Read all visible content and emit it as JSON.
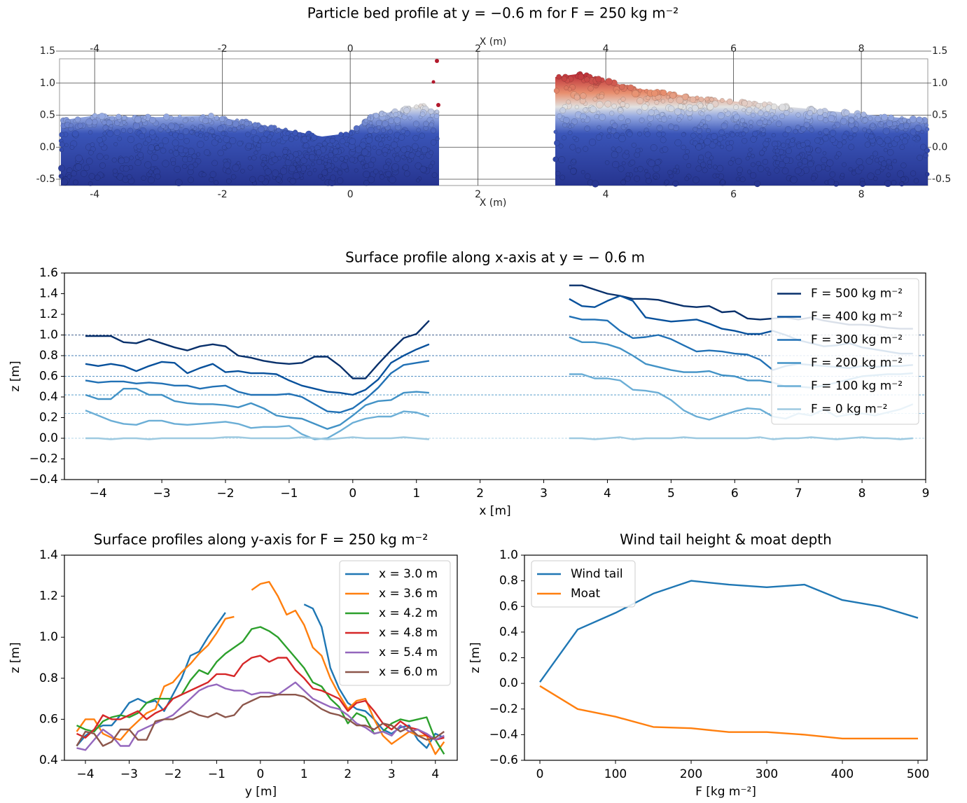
{
  "chart_data": [
    {
      "type": "render",
      "title": "Particle bed profile at y = −0.6 m for F = 250 kg m⁻²",
      "xlabel": "X (m)",
      "xlim": [
        -4.55,
        9.04
      ],
      "ylim": [
        -0.5,
        1.5
      ],
      "xticks": [
        -4,
        -2,
        0,
        2,
        4,
        6,
        8
      ],
      "yticks": [
        -0.5,
        {
          "value": 0,
          "label": "0.0"
        },
        0.5,
        {
          "value": 1,
          "label": "1.0"
        },
        1.5
      ]
    },
    {
      "type": "line",
      "title": "Surface profile along x-axis at y = − 0.6 m",
      "xlabel": "x [m]",
      "ylabel": "z [m]",
      "xlim": [
        -4.53,
        9
      ],
      "ylim": [
        -0.4,
        1.6
      ],
      "legend": "upper right",
      "xticks": [
        {
          "value": -4,
          "label": "−4"
        },
        {
          "value": -3,
          "label": "−3"
        },
        {
          "value": -2,
          "label": "−2"
        },
        {
          "value": -1,
          "label": "−1"
        },
        0,
        1,
        2,
        3,
        4,
        5,
        6,
        7,
        8,
        9
      ],
      "yticks": [
        {
          "value": -0.4,
          "label": "−0.4"
        },
        {
          "value": -0.2,
          "label": "−0.2"
        },
        {
          "value": 0,
          "label": "0.0"
        },
        0.2,
        0.4,
        0.6,
        0.8,
        {
          "value": 1,
          "label": "1.0"
        },
        1.2,
        1.4,
        1.6
      ],
      "x": [
        -4.2,
        -4,
        -3.8,
        -3.6,
        -3.4,
        -3.2,
        -3,
        -2.8,
        -2.6,
        -2.4,
        -2.2,
        -2,
        -1.8,
        -1.6,
        -1.4,
        -1.2,
        -1,
        -0.8,
        -0.6,
        -0.4,
        -0.2,
        0,
        0.2,
        0.4,
        0.6,
        0.8,
        1,
        1.2,
        1.4,
        1.6,
        1.8,
        2,
        2.2,
        2.4,
        2.6,
        2.8,
        3,
        3.2,
        3.4,
        3.6,
        3.8,
        4,
        4.2,
        4.4,
        4.6,
        4.8,
        5,
        5.2,
        5.4,
        5.6,
        5.8,
        6,
        6.2,
        6.4,
        6.6,
        6.8,
        7,
        7.2,
        7.4,
        7.6,
        7.8,
        8,
        8.2,
        8.4,
        8.6,
        8.8
      ],
      "dashed_levels": [
        1.0,
        0.8,
        0.6,
        0.42,
        0.24,
        0
      ],
      "series": [
        {
          "name": "F = 500 kg m⁻²",
          "color": "#08306b",
          "values": [
            0.99,
            0.99,
            0.99,
            0.93,
            0.92,
            0.96,
            0.92,
            0.88,
            0.85,
            0.89,
            0.91,
            0.89,
            0.8,
            0.78,
            0.75,
            0.73,
            0.72,
            0.73,
            0.79,
            0.79,
            0.7,
            0.58,
            0.58,
            0.72,
            0.85,
            0.97,
            1.01,
            1.14,
            null,
            null,
            null,
            null,
            null,
            null,
            null,
            null,
            null,
            null,
            1.48,
            1.48,
            1.44,
            1.4,
            1.38,
            1.35,
            1.35,
            1.34,
            1.31,
            1.28,
            1.27,
            1.28,
            1.22,
            1.23,
            1.16,
            1.15,
            1.16,
            1.17,
            1.15,
            1.17,
            1.14,
            1.12,
            1.1,
            1.1,
            1.09,
            1.07,
            1.06,
            1.06
          ]
        },
        {
          "name": "F = 400 kg m⁻²",
          "color": "#08519c",
          "values": [
            0.72,
            0.7,
            0.72,
            0.7,
            0.65,
            0.7,
            0.74,
            0.73,
            0.63,
            0.68,
            0.72,
            0.64,
            0.65,
            0.63,
            0.63,
            0.62,
            0.56,
            0.51,
            0.48,
            0.45,
            0.44,
            0.42,
            0.47,
            0.57,
            0.73,
            0.8,
            0.86,
            0.91,
            null,
            null,
            null,
            null,
            null,
            null,
            null,
            null,
            null,
            null,
            1.35,
            1.28,
            1.27,
            1.33,
            1.38,
            1.33,
            1.17,
            1.15,
            1.13,
            1.14,
            1.15,
            1.11,
            1.06,
            1.04,
            1.01,
            1.01,
            1.04,
            1.0,
            0.95,
            0.92,
            0.89,
            0.9,
            0.92,
            0.88,
            0.86,
            0.84,
            0.82,
            0.82
          ]
        },
        {
          "name": "F = 300 kg m⁻²",
          "color": "#2171b5",
          "values": [
            0.56,
            0.54,
            0.55,
            0.55,
            0.53,
            0.54,
            0.53,
            0.51,
            0.51,
            0.48,
            0.5,
            0.51,
            0.45,
            0.42,
            0.42,
            0.42,
            0.43,
            0.4,
            0.33,
            0.26,
            0.25,
            0.29,
            0.38,
            0.49,
            0.63,
            0.71,
            0.73,
            0.75,
            null,
            null,
            null,
            null,
            null,
            null,
            null,
            null,
            null,
            null,
            1.18,
            1.15,
            1.15,
            1.14,
            1.04,
            0.97,
            0.98,
            1.0,
            0.96,
            0.9,
            0.84,
            0.85,
            0.84,
            0.82,
            0.81,
            0.76,
            0.66,
            0.7,
            0.72,
            0.71,
            0.7,
            0.69,
            0.68,
            0.7,
            0.69,
            0.7,
            0.7,
            0.71
          ]
        },
        {
          "name": "F = 200 kg m⁻²",
          "color": "#4292c6",
          "values": [
            0.42,
            0.38,
            0.38,
            0.48,
            0.48,
            0.42,
            0.42,
            0.36,
            0.34,
            0.33,
            0.33,
            0.32,
            0.3,
            0.34,
            0.29,
            0.22,
            0.2,
            0.19,
            0.14,
            0.09,
            0.13,
            0.22,
            0.32,
            0.36,
            0.37,
            0.44,
            0.45,
            0.44,
            null,
            null,
            null,
            null,
            null,
            null,
            null,
            null,
            null,
            null,
            0.98,
            0.93,
            0.93,
            0.91,
            0.87,
            0.8,
            0.72,
            0.69,
            0.66,
            0.64,
            0.64,
            0.65,
            0.61,
            0.6,
            0.56,
            0.56,
            0.54,
            0.5,
            0.5,
            0.49,
            0.51,
            0.54,
            0.57,
            0.6,
            0.61,
            0.62,
            0.62,
            0.63
          ]
        },
        {
          "name": "F = 100 kg m⁻²",
          "color": "#6baed6",
          "values": [
            0.27,
            0.22,
            0.17,
            0.14,
            0.13,
            0.17,
            0.17,
            0.14,
            0.13,
            0.14,
            0.15,
            0.16,
            0.14,
            0.1,
            0.11,
            0.11,
            0.12,
            0.04,
            -0.01,
            0.0,
            0.07,
            0.15,
            0.19,
            0.21,
            0.21,
            0.26,
            0.25,
            0.21,
            null,
            null,
            null,
            null,
            null,
            null,
            null,
            null,
            null,
            null,
            0.62,
            0.62,
            0.58,
            0.58,
            0.56,
            0.47,
            0.46,
            0.44,
            0.37,
            0.27,
            0.21,
            0.18,
            0.22,
            0.26,
            0.29,
            0.28,
            0.21,
            0.19,
            0.24,
            0.22,
            0.28,
            0.21,
            0.23,
            0.24,
            0.22,
            0.25,
            0.28,
            0.33
          ]
        },
        {
          "name": "F = 0 kg m⁻²",
          "color": "#9ecae1",
          "values": [
            0.0,
            0.0,
            -0.01,
            0.0,
            0.0,
            -0.01,
            0.0,
            0.0,
            0.0,
            0.0,
            0.0,
            0.01,
            0.01,
            0.0,
            0.0,
            0.0,
            0.0,
            0.01,
            0.0,
            -0.01,
            0.0,
            0.01,
            0.0,
            0.0,
            0.0,
            0.01,
            0.0,
            -0.01,
            null,
            null,
            null,
            null,
            null,
            null,
            null,
            null,
            null,
            null,
            0.0,
            0.0,
            -0.01,
            0.0,
            0.01,
            -0.01,
            0.0,
            0.0,
            0.0,
            0.01,
            0.0,
            0.0,
            0.0,
            0.0,
            0.0,
            0.01,
            -0.01,
            0.0,
            0.0,
            0.01,
            0.0,
            -0.01,
            0.0,
            0.01,
            0.0,
            0.0,
            -0.01,
            0.0
          ]
        }
      ]
    },
    {
      "type": "line",
      "title": "Surface profiles along y-axis for F = 250 kg m⁻²",
      "xlabel": "y [m]",
      "ylabel": "z [m]",
      "xlim": [
        -4.48,
        4.5
      ],
      "ylim": [
        0.4,
        1.4
      ],
      "legend": "upper right",
      "xticks": [
        {
          "value": -4,
          "label": "−4"
        },
        {
          "value": -3,
          "label": "−3"
        },
        {
          "value": -2,
          "label": "−2"
        },
        {
          "value": -1,
          "label": "−1"
        },
        0,
        1,
        2,
        3,
        4
      ],
      "yticks": [
        0.4,
        0.6,
        0.8,
        {
          "value": 1,
          "label": "1.0"
        },
        1.2,
        1.4
      ],
      "x": [
        -4.2,
        -4,
        -3.8,
        -3.6,
        -3.4,
        -3.2,
        -3,
        -2.8,
        -2.6,
        -2.4,
        -2.2,
        -2,
        -1.8,
        -1.6,
        -1.4,
        -1.2,
        -1,
        -0.8,
        -0.6,
        -0.4,
        -0.2,
        0,
        0.2,
        0.4,
        0.6,
        0.8,
        1,
        1.2,
        1.4,
        1.6,
        1.8,
        2,
        2.2,
        2.4,
        2.6,
        2.8,
        3,
        3.2,
        3.4,
        3.6,
        3.8,
        4,
        4.2
      ],
      "series": [
        {
          "name": "x = 3.0 m",
          "color": "#1f77b4",
          "values": [
            0.47,
            0.52,
            0.55,
            0.57,
            0.57,
            0.62,
            0.68,
            0.7,
            0.68,
            0.69,
            0.64,
            0.72,
            0.8,
            0.91,
            0.93,
            1.0,
            1.06,
            1.12,
            null,
            null,
            null,
            null,
            null,
            null,
            null,
            null,
            1.16,
            1.14,
            1.05,
            0.85,
            0.75,
            0.68,
            0.65,
            0.64,
            0.6,
            0.55,
            0.53,
            0.56,
            0.57,
            0.5,
            0.46,
            0.53,
            0.51
          ]
        },
        {
          "name": "x = 3.6 m",
          "color": "#ff7f0e",
          "values": [
            0.54,
            0.6,
            0.6,
            0.53,
            0.51,
            0.5,
            0.55,
            0.59,
            0.63,
            0.65,
            0.76,
            0.78,
            0.83,
            0.87,
            0.92,
            0.96,
            1.02,
            1.09,
            1.1,
            null,
            1.23,
            1.26,
            1.27,
            1.2,
            1.11,
            1.13,
            1.06,
            0.95,
            0.91,
            0.8,
            0.72,
            0.65,
            0.69,
            0.7,
            0.6,
            0.52,
            0.48,
            0.51,
            0.54,
            0.52,
            0.52,
            0.43,
            0.49
          ]
        },
        {
          "name": "x = 4.2 m",
          "color": "#2ca02c",
          "values": [
            0.57,
            0.55,
            0.54,
            0.59,
            0.61,
            0.62,
            0.61,
            0.63,
            0.68,
            0.7,
            0.7,
            0.7,
            0.72,
            0.79,
            0.84,
            0.82,
            0.88,
            0.92,
            0.95,
            0.98,
            1.04,
            1.05,
            1.03,
            1.0,
            0.95,
            0.9,
            0.85,
            0.78,
            0.76,
            0.7,
            0.66,
            0.58,
            0.63,
            0.61,
            0.53,
            0.54,
            0.58,
            0.6,
            0.59,
            0.6,
            0.61,
            0.5,
            0.43
          ]
        },
        {
          "name": "x = 4.8 m",
          "color": "#d62728",
          "values": [
            0.53,
            0.51,
            0.55,
            0.62,
            0.6,
            0.6,
            0.62,
            0.64,
            0.6,
            0.63,
            0.65,
            0.7,
            0.72,
            0.74,
            0.76,
            0.78,
            0.82,
            0.82,
            0.81,
            0.87,
            0.9,
            0.91,
            0.88,
            0.9,
            0.9,
            0.84,
            0.8,
            0.75,
            0.74,
            0.72,
            0.7,
            0.64,
            0.68,
            0.69,
            0.64,
            0.58,
            0.55,
            0.59,
            0.56,
            0.55,
            0.52,
            0.5,
            0.51
          ]
        },
        {
          "name": "x = 5.4 m",
          "color": "#9467bd",
          "values": [
            0.46,
            0.45,
            0.5,
            0.55,
            0.52,
            0.47,
            0.47,
            0.54,
            0.56,
            0.58,
            0.6,
            0.62,
            0.66,
            0.7,
            0.74,
            0.76,
            0.77,
            0.75,
            0.74,
            0.74,
            0.72,
            0.73,
            0.73,
            0.72,
            0.75,
            0.78,
            0.74,
            0.7,
            0.68,
            0.66,
            0.65,
            0.62,
            0.58,
            0.56,
            0.53,
            0.54,
            0.52,
            0.57,
            0.54,
            0.55,
            0.53,
            0.5,
            0.52
          ]
        },
        {
          "name": "x = 6.0 m",
          "color": "#8c564b",
          "values": [
            0.47,
            0.54,
            0.53,
            0.47,
            0.49,
            0.55,
            0.55,
            0.5,
            0.5,
            0.59,
            0.6,
            0.6,
            0.62,
            0.64,
            0.62,
            0.61,
            0.63,
            0.61,
            0.62,
            0.67,
            0.69,
            0.71,
            0.71,
            0.72,
            0.72,
            0.72,
            0.71,
            0.68,
            0.65,
            0.63,
            0.62,
            0.6,
            0.57,
            0.57,
            0.55,
            0.58,
            0.57,
            0.54,
            0.56,
            0.52,
            0.5,
            0.51,
            0.54
          ]
        }
      ]
    },
    {
      "type": "line",
      "title": "Wind tail height & moat depth",
      "xlabel": "F [kg m⁻²]",
      "ylabel": "z [m]",
      "xlim": [
        -20.4,
        512
      ],
      "ylim": [
        -0.6,
        1.0
      ],
      "legend": "upper left",
      "xticks": [
        0,
        100,
        200,
        300,
        400,
        500
      ],
      "yticks": [
        {
          "value": -0.6,
          "label": "−0.6"
        },
        {
          "value": -0.4,
          "label": "−0.4"
        },
        {
          "value": -0.2,
          "label": "−0.2"
        },
        {
          "value": 0,
          "label": "0.0"
        },
        0.2,
        0.4,
        0.6,
        0.8,
        {
          "value": 1,
          "label": "1.0"
        }
      ],
      "x": [
        0,
        50,
        100,
        150,
        200,
        250,
        300,
        350,
        400,
        450,
        500
      ],
      "series": [
        {
          "name": "Wind tail",
          "color": "#1f77b4",
          "values": [
            0.01,
            0.42,
            0.55,
            0.7,
            0.8,
            0.77,
            0.75,
            0.77,
            0.65,
            0.6,
            0.51
          ]
        },
        {
          "name": "Moat",
          "color": "#ff7f0e",
          "values": [
            -0.02,
            -0.2,
            -0.26,
            -0.34,
            -0.35,
            -0.38,
            -0.38,
            -0.4,
            -0.43,
            -0.43,
            -0.43
          ]
        }
      ]
    }
  ]
}
